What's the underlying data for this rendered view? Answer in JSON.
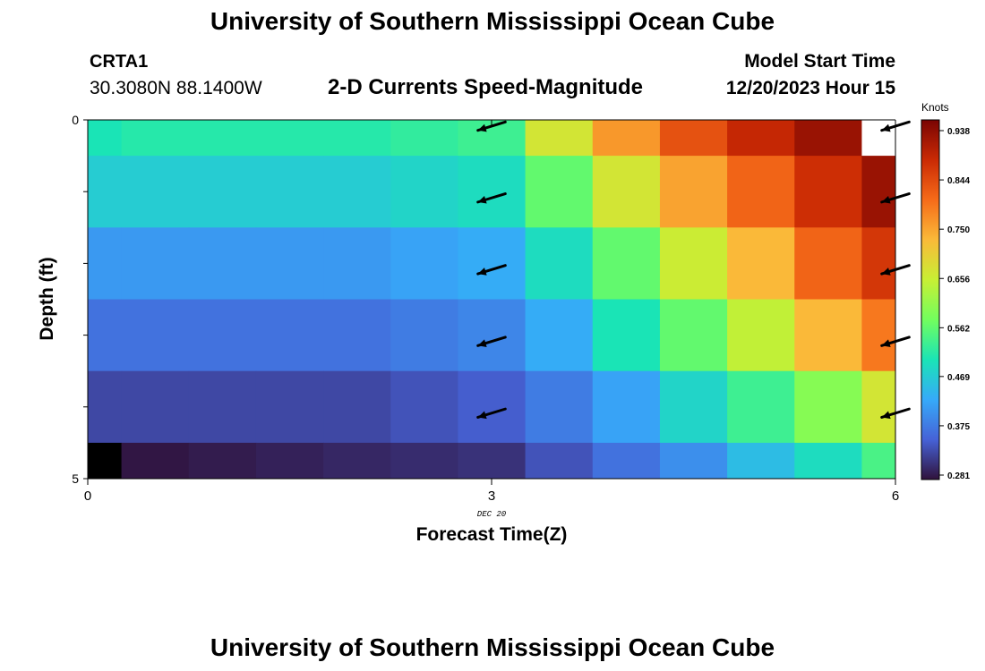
{
  "header": {
    "title": "University of Southern Mississippi Ocean Cube",
    "station_id": "CRTA1",
    "coordinates": "30.3080N  88.1400W",
    "product": "2-D Currents Speed-Magnitude",
    "model_start_label": "Model Start Time",
    "model_start_value": "12/20/2023 Hour 15"
  },
  "footer": {
    "title": "University of Southern Mississippi Ocean Cube"
  },
  "chart_data": {
    "type": "heatmap",
    "xlabel": "Forecast Time(Z)",
    "ylabel": "Depth (ft)",
    "x_date_label": "DEC 20",
    "xlim": [
      0,
      6
    ],
    "ylim": [
      0,
      5
    ],
    "x_ticks": [
      0,
      3,
      6
    ],
    "x_tick_labels": [
      "0",
      "3",
      "6"
    ],
    "y_ticks": [
      0,
      1,
      2,
      3,
      4,
      5
    ],
    "y_tick_labels": [
      "0",
      "",
      "",
      "",
      "",
      "5"
    ],
    "x_centers": [
      0,
      0.5,
      1,
      1.5,
      2,
      2.5,
      3,
      3.5,
      4,
      4.5,
      5,
      5.5,
      6
    ],
    "depth_bins": [
      [
        0,
        0.5
      ],
      [
        0.5,
        1.5
      ],
      [
        1.5,
        2.5
      ],
      [
        2.5,
        3.5
      ],
      [
        3.5,
        4.5
      ],
      [
        4.5,
        5
      ]
    ],
    "speed_knots": [
      [
        0.5,
        0.51,
        0.51,
        0.51,
        0.51,
        0.52,
        0.53,
        0.66,
        0.75,
        0.82,
        0.87,
        0.91,
        null
      ],
      [
        0.47,
        0.47,
        0.47,
        0.47,
        0.47,
        0.48,
        0.49,
        0.56,
        0.66,
        0.74,
        0.8,
        0.86,
        0.91
      ],
      [
        0.41,
        0.41,
        0.41,
        0.41,
        0.41,
        0.42,
        0.43,
        0.49,
        0.56,
        0.65,
        0.72,
        0.8,
        0.85
      ],
      [
        0.37,
        0.37,
        0.37,
        0.37,
        0.37,
        0.38,
        0.39,
        0.43,
        0.5,
        0.56,
        0.64,
        0.72,
        0.78
      ],
      [
        0.33,
        0.33,
        0.33,
        0.33,
        0.33,
        0.34,
        0.35,
        0.38,
        0.42,
        0.48,
        0.53,
        0.59,
        0.66
      ],
      [
        0.2,
        0.285,
        0.29,
        0.295,
        0.3,
        0.305,
        0.31,
        0.34,
        0.37,
        0.4,
        0.45,
        0.49,
        0.54
      ]
    ],
    "vectors": [
      {
        "x": 3,
        "depth": 0,
        "dir": "WSW"
      },
      {
        "x": 3,
        "depth": 1,
        "dir": "WSW"
      },
      {
        "x": 3,
        "depth": 2,
        "dir": "WSW"
      },
      {
        "x": 3,
        "depth": 3,
        "dir": "WSW"
      },
      {
        "x": 3,
        "depth": 4,
        "dir": "WSW"
      },
      {
        "x": 6,
        "depth": 0,
        "dir": "WSW"
      },
      {
        "x": 6,
        "depth": 1,
        "dir": "WSW"
      },
      {
        "x": 6,
        "depth": 2,
        "dir": "WSW"
      },
      {
        "x": 6,
        "depth": 3,
        "dir": "WSW"
      },
      {
        "x": 6,
        "depth": 4,
        "dir": "WSW"
      }
    ],
    "colorbar": {
      "title": "Knots",
      "min": 0.281,
      "max": 0.938,
      "tick_values": [
        0.281,
        0.375,
        0.469,
        0.562,
        0.656,
        0.75,
        0.844,
        0.938
      ],
      "tick_labels": [
        "0.281",
        "0.375",
        "0.469",
        "0.562",
        "0.656",
        "0.750",
        "0.844",
        "0.938"
      ],
      "colormap": [
        "#30123b",
        "#4662d7",
        "#36aaf9",
        "#1ae4b6",
        "#72fe5e",
        "#c8ef34",
        "#faba39",
        "#f66b19",
        "#ca2a04",
        "#7a0403"
      ]
    }
  }
}
